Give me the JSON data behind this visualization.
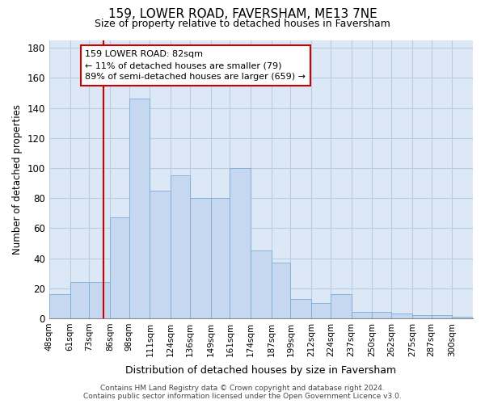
{
  "title": "159, LOWER ROAD, FAVERSHAM, ME13 7NE",
  "subtitle": "Size of property relative to detached houses in Faversham",
  "xlabel": "Distribution of detached houses by size in Faversham",
  "ylabel": "Number of detached properties",
  "bar_color": "#c5d8f0",
  "bar_edge_color": "#7aadd4",
  "grid_color": "#b8cce4",
  "background_color": "#dce8f5",
  "bins": [
    48,
    61,
    73,
    86,
    98,
    111,
    124,
    136,
    149,
    161,
    174,
    187,
    199,
    212,
    224,
    237,
    250,
    262,
    275,
    287,
    300
  ],
  "values": [
    16,
    24,
    24,
    67,
    146,
    85,
    95,
    80,
    80,
    100,
    45,
    37,
    13,
    10,
    16,
    4,
    4,
    3,
    2,
    2,
    1
  ],
  "vline_x": 82,
  "vline_color": "#cc0000",
  "annotation_line1": "159 LOWER ROAD: 82sqm",
  "annotation_line2": "← 11% of detached houses are smaller (79)",
  "annotation_line3": "89% of semi-detached houses are larger (659) →",
  "annotation_box_color": "#cc0000",
  "ylim": [
    0,
    185
  ],
  "yticks": [
    0,
    20,
    40,
    60,
    80,
    100,
    120,
    140,
    160,
    180
  ],
  "footer_text": "Contains HM Land Registry data © Crown copyright and database right 2024.\nContains public sector information licensed under the Open Government Licence v3.0.",
  "tick_labels": [
    "48sqm",
    "61sqm",
    "73sqm",
    "86sqm",
    "98sqm",
    "111sqm",
    "124sqm",
    "136sqm",
    "149sqm",
    "161sqm",
    "174sqm",
    "187sqm",
    "199sqm",
    "212sqm",
    "224sqm",
    "237sqm",
    "250sqm",
    "262sqm",
    "275sqm",
    "287sqm",
    "300sqm"
  ]
}
